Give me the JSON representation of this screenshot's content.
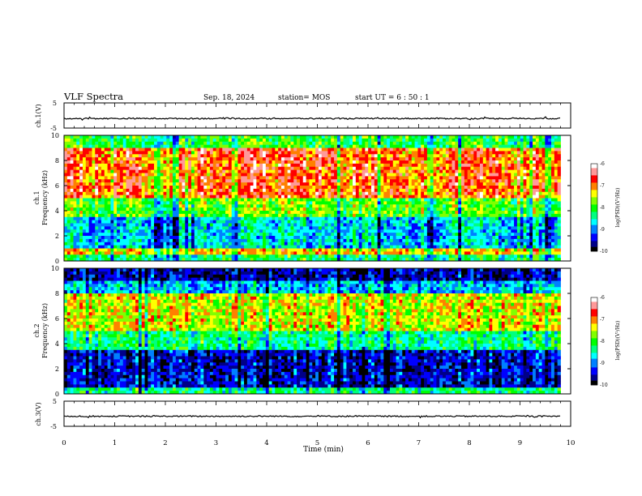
{
  "header": {
    "title": "VLF Spectra",
    "date": "Sep. 18, 2024",
    "station": "station= MOS",
    "start": "start UT = 6 : 50 : 1"
  },
  "colors": {
    "palette": [
      "#000000",
      "#000088",
      "#0000ff",
      "#0080ff",
      "#00ffff",
      "#00ff80",
      "#00ff00",
      "#80ff00",
      "#ffff00",
      "#ff8000",
      "#ff0000",
      "#ff9999",
      "#ffffff"
    ]
  },
  "chart_data": [
    {
      "type": "line",
      "id": "ch1-waveform",
      "ylabel": "ch.1(V)",
      "ylim": [
        -5,
        5
      ],
      "yticks": [
        "5",
        "-5"
      ],
      "xlim": [
        0,
        10
      ],
      "series": [
        {
          "description": "near-constant waveform at about -1 V",
          "level": -1.2,
          "x_end": 9.8
        }
      ]
    },
    {
      "type": "heatmap",
      "id": "ch1-spectrogram",
      "ylabel": "ch.1 Frequency (kHz)",
      "ylim": [
        0,
        10
      ],
      "yticks": [
        "0",
        "2",
        "4",
        "6",
        "8",
        "10"
      ],
      "xlim": [
        0,
        9.8
      ],
      "colorbar": {
        "label": "log(PSD)(V²/Hz)",
        "range": [
          -10,
          -6
        ],
        "ticks": [
          "-6",
          "-7",
          "-8",
          "-9",
          "-10"
        ]
      },
      "bands": [
        {
          "f_range": [
            0,
            0.5
          ],
          "log_psd": -8.2
        },
        {
          "f_range": [
            0.5,
            1
          ],
          "log_psd": -7.2
        },
        {
          "f_range": [
            1,
            3.5
          ],
          "log_psd": -8.7
        },
        {
          "f_range": [
            3.5,
            5
          ],
          "log_psd": -7.8
        },
        {
          "f_range": [
            5,
            9
          ],
          "log_psd": -6.8
        },
        {
          "f_range": [
            9,
            10
          ],
          "log_psd": -8.0
        }
      ]
    },
    {
      "type": "heatmap",
      "id": "ch2-spectrogram",
      "ylabel": "ch.2 Frequency (kHz)",
      "ylim": [
        0,
        10
      ],
      "yticks": [
        "0",
        "2",
        "4",
        "6",
        "8",
        "10"
      ],
      "xlim": [
        0,
        9.8
      ],
      "colorbar": {
        "label": "log(PSD)(V²/Hz)",
        "range": [
          -10,
          -6
        ],
        "ticks": [
          "-6",
          "-7",
          "-8",
          "-9",
          "-10"
        ]
      },
      "bands": [
        {
          "f_range": [
            0,
            0.5
          ],
          "log_psd": -8.3
        },
        {
          "f_range": [
            0.5,
            3.5
          ],
          "log_psd": -9.5
        },
        {
          "f_range": [
            3.5,
            5
          ],
          "log_psd": -8.3
        },
        {
          "f_range": [
            5,
            8
          ],
          "log_psd": -7.4
        },
        {
          "f_range": [
            8,
            9
          ],
          "log_psd": -8.8
        },
        {
          "f_range": [
            9,
            10
          ],
          "log_psd": -9.6
        }
      ]
    },
    {
      "type": "line",
      "id": "ch3-waveform",
      "ylabel": "ch.3(V)",
      "ylim": [
        -5,
        5
      ],
      "yticks": [
        "5",
        "-5"
      ],
      "xlim": [
        0,
        10
      ],
      "xlabel": "Time (min)",
      "xticks": [
        "0",
        "1",
        "2",
        "3",
        "4",
        "5",
        "6",
        "7",
        "8",
        "9",
        "10"
      ],
      "series": [
        {
          "description": "near-constant waveform at about -1 V",
          "level": -1.0,
          "x_end": 9.8
        }
      ]
    }
  ]
}
